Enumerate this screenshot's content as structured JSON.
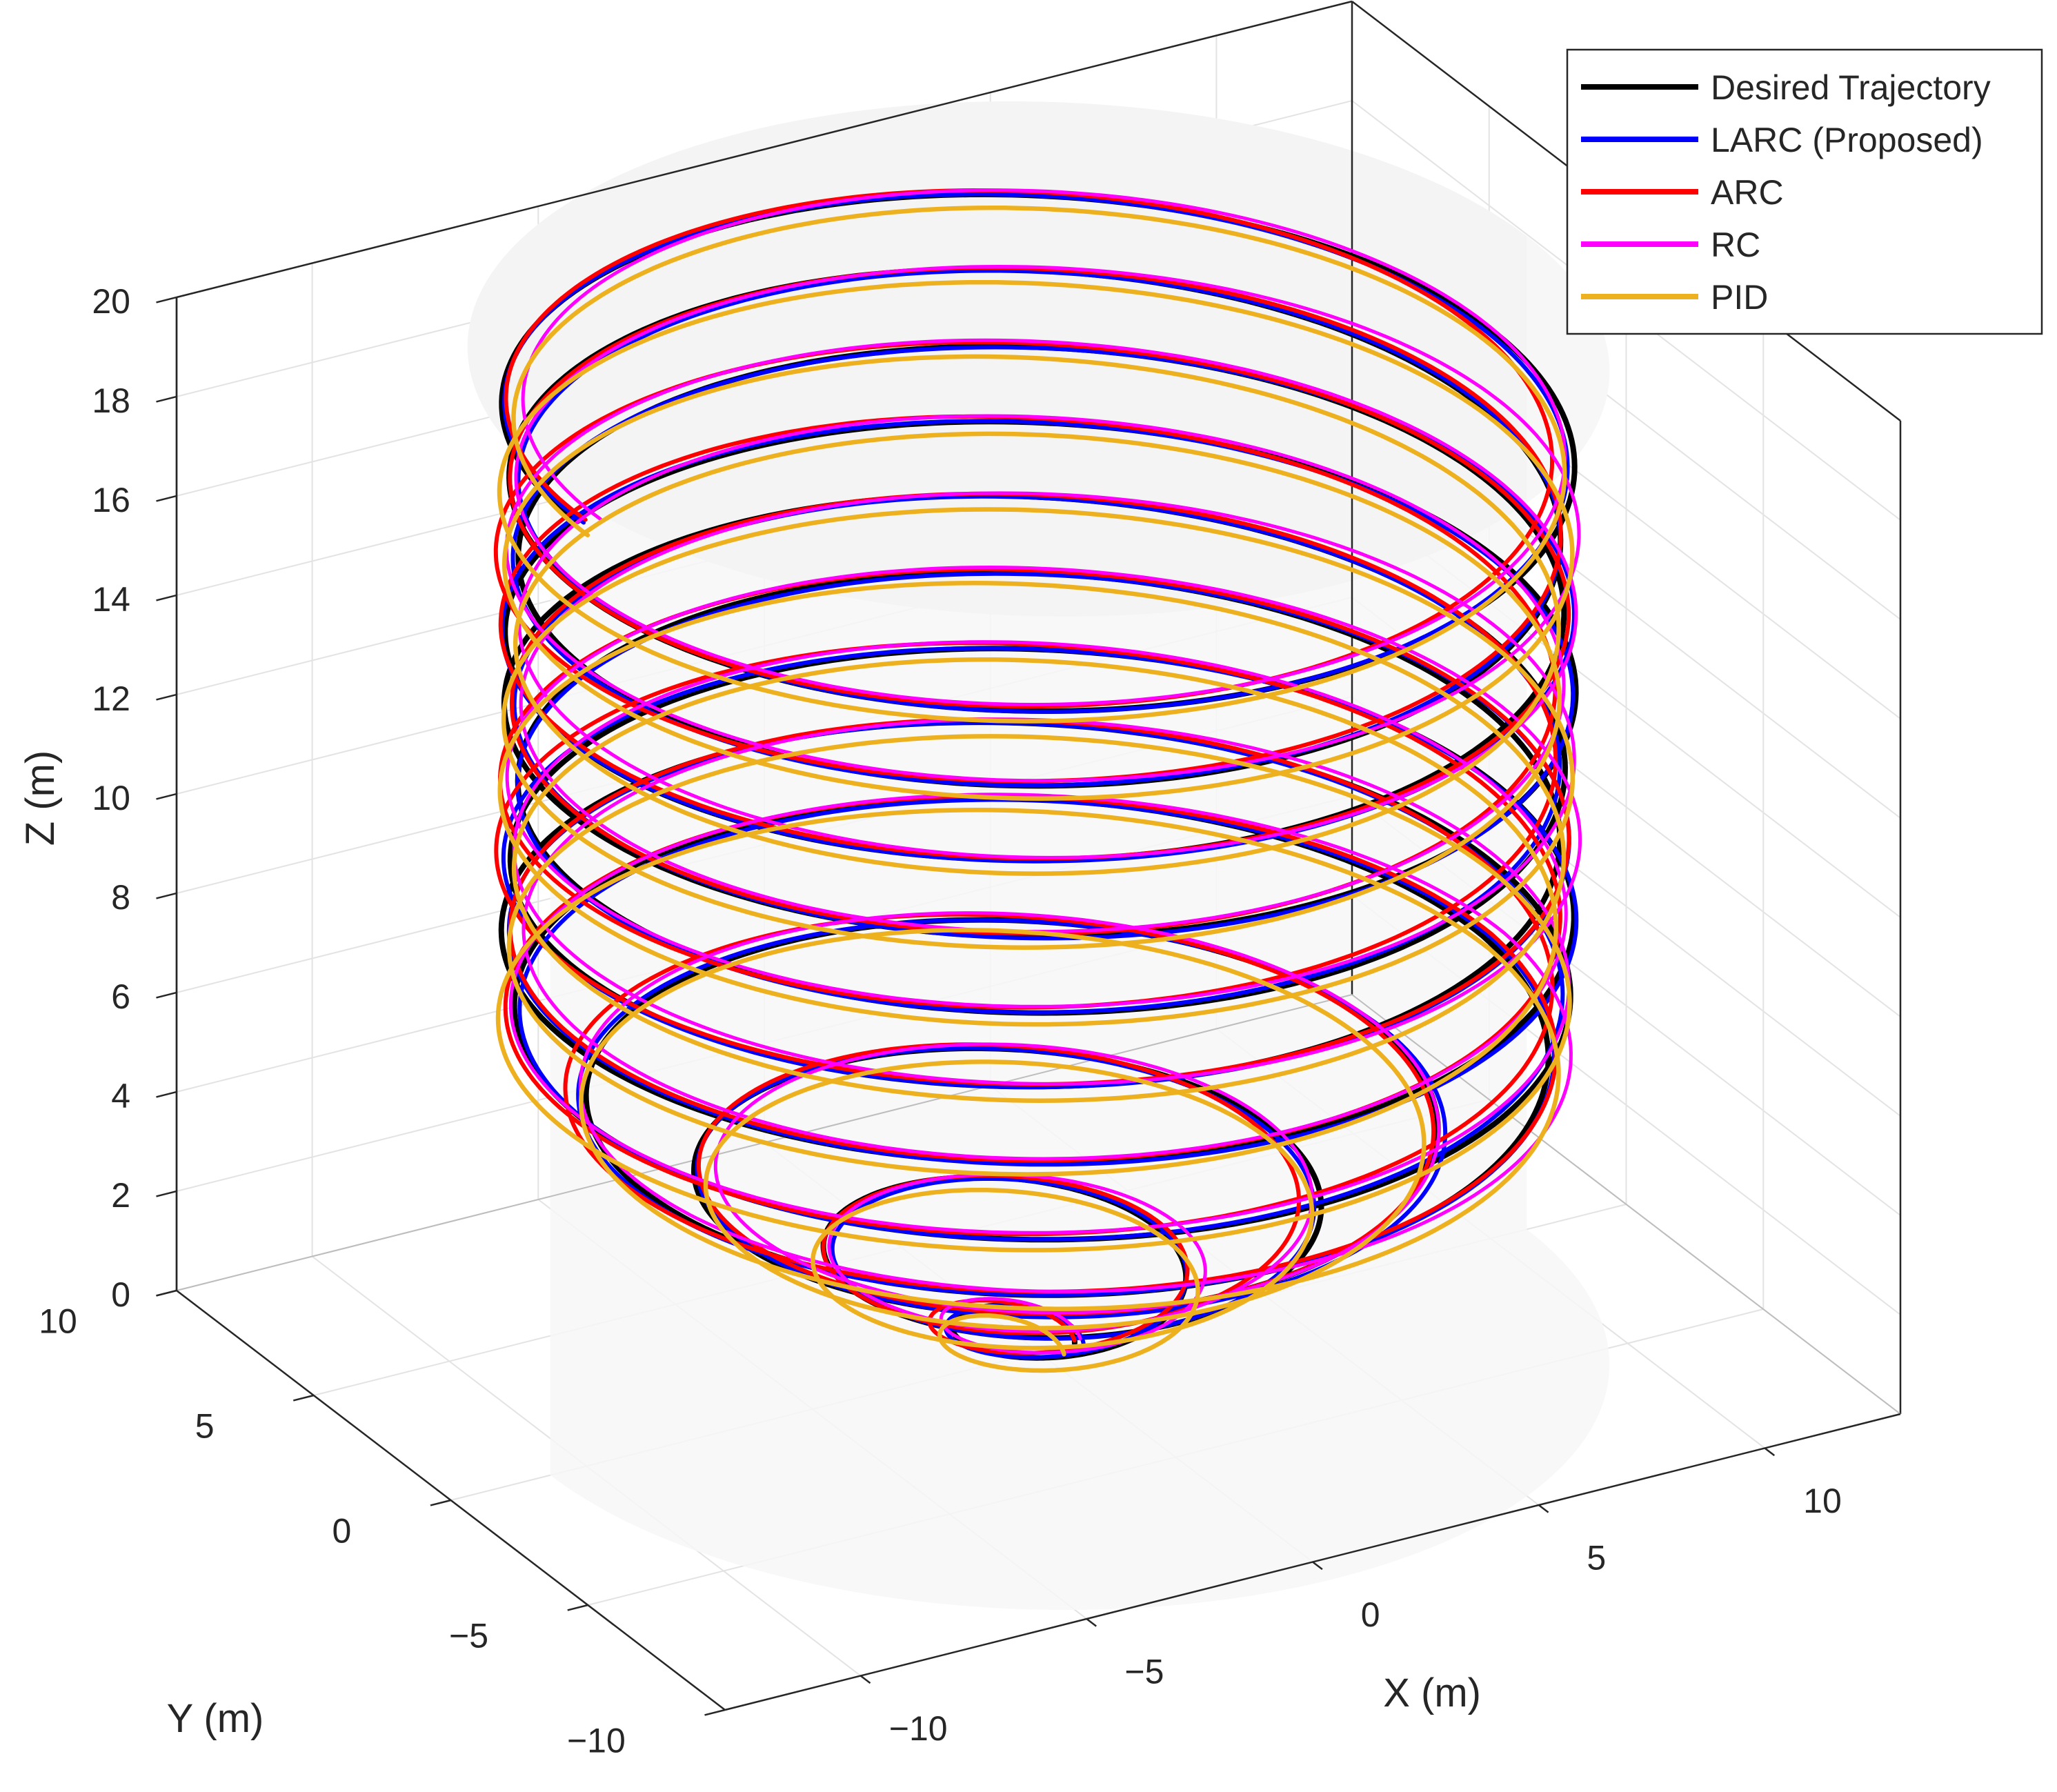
{
  "chart_data": {
    "type": "line3d",
    "xlabel": "X  (m)",
    "ylabel": "Y  (m)",
    "zlabel": "Z  (m)",
    "xlim": [
      -13,
      13
    ],
    "ylim": [
      -10,
      10
    ],
    "zlim": [
      0,
      20
    ],
    "x_ticks": [
      -10,
      -5,
      0,
      5,
      10
    ],
    "y_ticks": [
      -10,
      -5,
      0,
      5,
      10
    ],
    "z_ticks": [
      0,
      2,
      4,
      6,
      8,
      10,
      12,
      14,
      16,
      18,
      20
    ],
    "x_tick_labels": [
      "−10",
      "−5",
      "0",
      "5",
      "10"
    ],
    "y_tick_labels": [
      "−10",
      "−5",
      "0",
      "5",
      "10"
    ],
    "z_tick_labels": [
      "0",
      "2",
      "4",
      "6",
      "8",
      "10",
      "12",
      "14",
      "16",
      "18",
      "20"
    ],
    "grid": true,
    "box": true,
    "legend_position": "top-right",
    "trajectory": {
      "shape": "spiral base growing into a helix of radius 10 m",
      "spiral_turns": 4,
      "spiral_radius_max": 10,
      "helix_radius": 10,
      "z_start": 0,
      "z_end": 19,
      "total_turns": 12.5
    },
    "series": [
      {
        "name": "Desired Trajectory",
        "color": "#000000"
      },
      {
        "name": "LARC (Proposed)",
        "color": "#0000ff"
      },
      {
        "name": "ARC",
        "color": "#ff0000"
      },
      {
        "name": "RC",
        "color": "#ff00ff"
      },
      {
        "name": "PID",
        "color": "#edb120"
      }
    ]
  }
}
